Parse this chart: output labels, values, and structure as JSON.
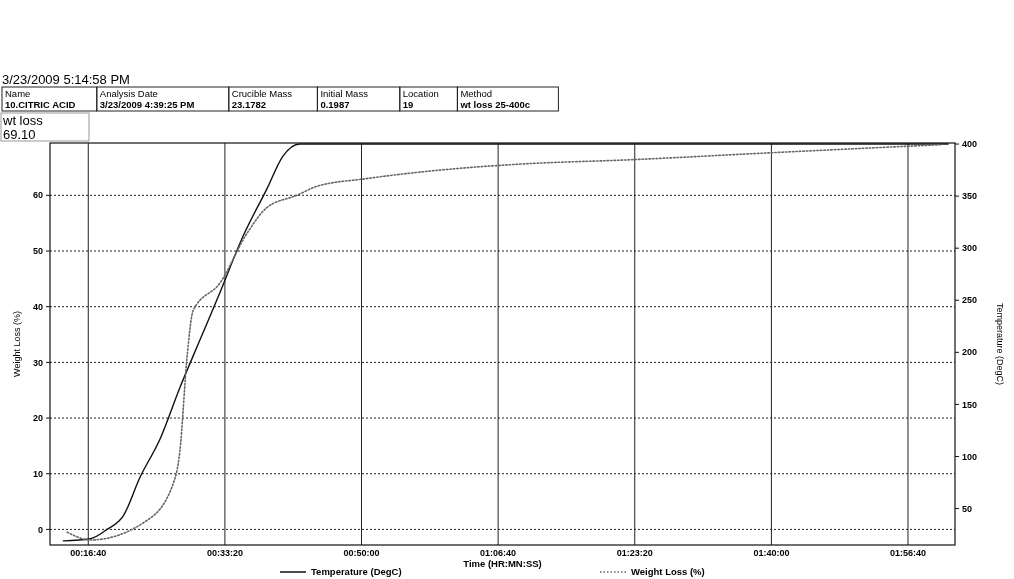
{
  "chart_data": {
    "type": "line",
    "annotations": [
      "3/23/2009 5:14:58 PM",
      "Name",
      "10.CITRIC ACID",
      "Analysis Date",
      "3/23/2009 4:39:25 PM",
      "Crucible Mass",
      "23.1782",
      "Initial Mass",
      "0.1987",
      "Location",
      "19",
      "Method",
      "wt loss 25-400c",
      "wt loss",
      "69.10"
    ],
    "xlabel": "Time (HR:MN:SS)",
    "ylabel": "Weight Loss (%)",
    "y2label": "Temperature (DegC)",
    "xlim": [
      0.2,
      2.04
    ],
    "xticks": [
      {
        "value": 0.2778,
        "label": "00:16:40"
      },
      {
        "value": 0.5556,
        "label": "00:33:20"
      },
      {
        "value": 0.8333,
        "label": "00:50:00"
      },
      {
        "value": 1.1111,
        "label": "01:06:40"
      },
      {
        "value": 1.3889,
        "label": "01:23:20"
      },
      {
        "value": 1.6667,
        "label": "01:40:00"
      },
      {
        "value": 1.9444,
        "label": "01:56:40"
      }
    ],
    "ylim": [
      -2.8,
      69.4
    ],
    "yticks": [
      0,
      10,
      20,
      30,
      40,
      50,
      60
    ],
    "y2lim": [
      15,
      401
    ],
    "y2ticks": [
      50,
      100,
      150,
      200,
      250,
      300,
      350,
      400
    ],
    "grid": true,
    "legend": "bottom",
    "marker": "none",
    "series": [
      {
        "name": "Temperature (DegC)",
        "color": "#111111",
        "axis": "y2",
        "line_style": "solid",
        "x": [
          0.227,
          0.282,
          0.316,
          0.349,
          0.383,
          0.424,
          0.464,
          0.505,
          0.546,
          0.592,
          0.641,
          0.673,
          0.708,
          1.0,
          1.4,
          1.8,
          2.026
        ],
        "values": [
          19,
          21,
          30,
          43,
          80,
          117,
          166,
          212,
          258,
          311,
          357,
          388,
          400,
          400,
          400,
          400,
          400
        ]
      },
      {
        "name": "Weight Loss (%)",
        "color": "#666666",
        "line_style": "dotted",
        "x": [
          0.235,
          0.282,
          0.397,
          0.45,
          0.464,
          0.479,
          0.491,
          0.546,
          0.6,
          0.641,
          0.702,
          0.742,
          0.843,
          0.977,
          1.154,
          1.383,
          1.655,
          2.012
        ],
        "values": [
          -0.5,
          -1.9,
          1.6,
          8.1,
          14,
          31.3,
          39.3,
          44.3,
          53.1,
          57.8,
          60,
          61.6,
          63,
          64.4,
          65.6,
          66.4,
          67.6,
          69.1
        ]
      }
    ]
  }
}
